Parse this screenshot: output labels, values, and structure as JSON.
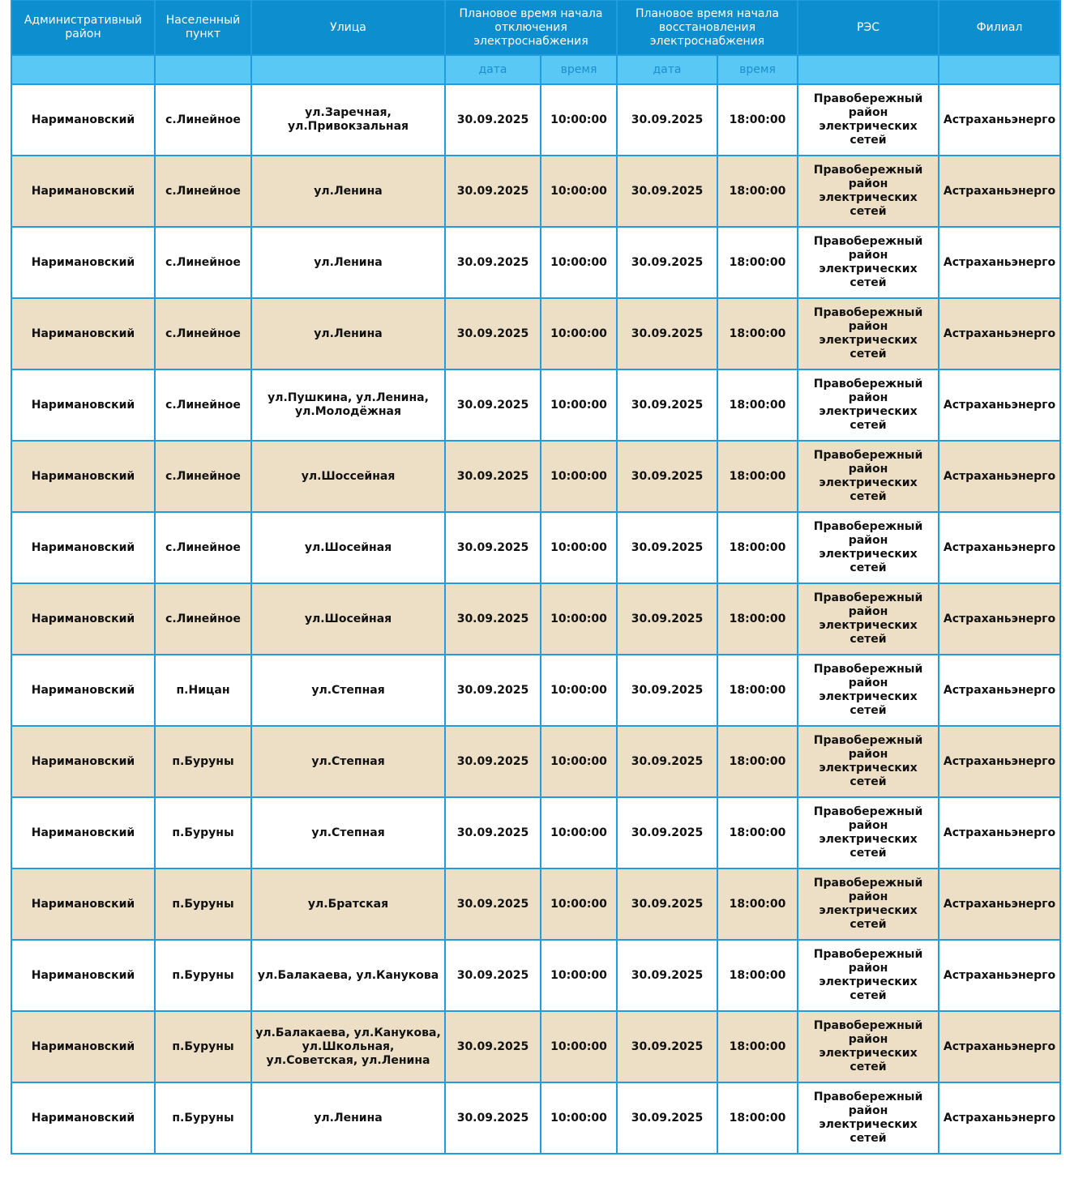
{
  "header": {
    "columns": [
      "Административный район",
      "Населенный пункт",
      "Улица",
      "Плановое время начала отключения электроснабжения",
      "Плановое время начала восстановления электроснабжения",
      "РЭС",
      "Филиал"
    ],
    "subcolumns": [
      "дата",
      "время",
      "дата",
      "время"
    ]
  },
  "table": {
    "rows": [
      [
        "Наримановский",
        "с.Линейное",
        "ул.Заречная, ул.Привокзальная",
        "30.09.2025",
        "10:00:00",
        "30.09.2025",
        "18:00:00",
        "Правобережный район электрических сетей",
        "Астраханьэнерго"
      ],
      [
        "Наримановский",
        "с.Линейное",
        "ул.Ленина",
        "30.09.2025",
        "10:00:00",
        "30.09.2025",
        "18:00:00",
        "Правобережный район электрических сетей",
        "Астраханьэнерго"
      ],
      [
        "Наримановский",
        "с.Линейное",
        "ул.Ленина",
        "30.09.2025",
        "10:00:00",
        "30.09.2025",
        "18:00:00",
        "Правобережный район электрических сетей",
        "Астраханьэнерго"
      ],
      [
        "Наримановский",
        "с.Линейное",
        "ул.Ленина",
        "30.09.2025",
        "10:00:00",
        "30.09.2025",
        "18:00:00",
        "Правобережный район электрических сетей",
        "Астраханьэнерго"
      ],
      [
        "Наримановский",
        "с.Линейное",
        "ул.Пушкина, ул.Ленина, ул.Молодёжная",
        "30.09.2025",
        "10:00:00",
        "30.09.2025",
        "18:00:00",
        "Правобережный район электрических сетей",
        "Астраханьэнерго"
      ],
      [
        "Наримановский",
        "с.Линейное",
        "ул.Шоссейная",
        "30.09.2025",
        "10:00:00",
        "30.09.2025",
        "18:00:00",
        "Правобережный район электрических сетей",
        "Астраханьэнерго"
      ],
      [
        "Наримановский",
        "с.Линейное",
        "ул.Шосейная",
        "30.09.2025",
        "10:00:00",
        "30.09.2025",
        "18:00:00",
        "Правобережный район электрических сетей",
        "Астраханьэнерго"
      ],
      [
        "Наримановский",
        "с.Линейное",
        "ул.Шосейная",
        "30.09.2025",
        "10:00:00",
        "30.09.2025",
        "18:00:00",
        "Правобережный район электрических сетей",
        "Астраханьэнерго"
      ],
      [
        "Наримановский",
        "п.Ницан",
        "ул.Степная",
        "30.09.2025",
        "10:00:00",
        "30.09.2025",
        "18:00:00",
        "Правобережный район электрических сетей",
        "Астраханьэнерго"
      ],
      [
        "Наримановский",
        "п.Буруны",
        "ул.Степная",
        "30.09.2025",
        "10:00:00",
        "30.09.2025",
        "18:00:00",
        "Правобережный район электрических сетей",
        "Астраханьэнерго"
      ],
      [
        "Наримановский",
        "п.Буруны",
        "ул.Степная",
        "30.09.2025",
        "10:00:00",
        "30.09.2025",
        "18:00:00",
        "Правобережный район электрических сетей",
        "Астраханьэнерго"
      ],
      [
        "Наримановский",
        "п.Буруны",
        "ул.Братская",
        "30.09.2025",
        "10:00:00",
        "30.09.2025",
        "18:00:00",
        "Правобережный район электрических сетей",
        "Астраханьэнерго"
      ],
      [
        "Наримановский",
        "п.Буруны",
        "ул.Балакаева, ул.Канукова",
        "30.09.2025",
        "10:00:00",
        "30.09.2025",
        "18:00:00",
        "Правобережный район электрических сетей",
        "Астраханьэнерго"
      ],
      [
        "Наримановский",
        "п.Буруны",
        "ул.Балакаева, ул.Канукова, ул.Школьная, ул.Советская, ул.Ленина",
        "30.09.2025",
        "10:00:00",
        "30.09.2025",
        "18:00:00",
        "Правобережный район электрических сетей",
        "Астраханьэнерго"
      ],
      [
        "Наримановский",
        "п.Буруны",
        "ул.Ленина",
        "30.09.2025",
        "10:00:00",
        "30.09.2025",
        "18:00:00",
        "Правобережный район электрических сетей",
        "Астраханьэнерго"
      ]
    ]
  }
}
